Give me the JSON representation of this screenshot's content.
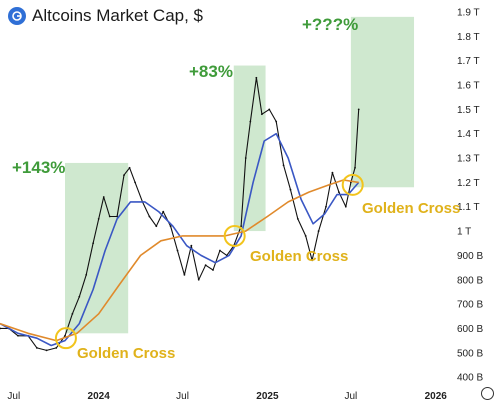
{
  "header": {
    "title": "Altcoins Market Cap, $"
  },
  "chart_data": {
    "type": "line",
    "title": "Altcoins Market Cap, $",
    "y_unit": "USD",
    "ylim": [
      0.38,
      1.9
    ],
    "y_ticks": [
      {
        "label": "1.9 T",
        "v": 1.9
      },
      {
        "label": "1.8 T",
        "v": 1.8
      },
      {
        "label": "1.7 T",
        "v": 1.7
      },
      {
        "label": "1.6 T",
        "v": 1.6
      },
      {
        "label": "1.5 T",
        "v": 1.5
      },
      {
        "label": "1.4 T",
        "v": 1.4
      },
      {
        "label": "1.3 T",
        "v": 1.3
      },
      {
        "label": "1.2 T",
        "v": 1.2
      },
      {
        "label": "1.1 T",
        "v": 1.1
      },
      {
        "label": "1 T",
        "v": 1.0
      },
      {
        "label": "900 B",
        "v": 0.9
      },
      {
        "label": "800 B",
        "v": 0.8
      },
      {
        "label": "700 B",
        "v": 0.7
      },
      {
        "label": "600 B",
        "v": 0.6
      },
      {
        "label": "500 B",
        "v": 0.5
      },
      {
        "label": "400 B",
        "v": 0.4
      }
    ],
    "xlim": [
      "2023-06-01",
      "2026-02-01"
    ],
    "x_ticks": [
      {
        "label": "Jul",
        "date": "2023-07-01",
        "bold": false
      },
      {
        "label": "2024",
        "date": "2024-01-01",
        "bold": true
      },
      {
        "label": "Jul",
        "date": "2024-07-01",
        "bold": false
      },
      {
        "label": "2025",
        "date": "2025-01-01",
        "bold": true
      },
      {
        "label": "Jul",
        "date": "2025-07-01",
        "bold": false
      },
      {
        "label": "2026",
        "date": "2026-01-01",
        "bold": true
      }
    ],
    "series": [
      {
        "key": "price",
        "color": "#111111",
        "points": [
          [
            "2023-06-01",
            0.6
          ],
          [
            "2023-06-20",
            0.6
          ],
          [
            "2023-07-10",
            0.57
          ],
          [
            "2023-08-01",
            0.57
          ],
          [
            "2023-08-20",
            0.52
          ],
          [
            "2023-09-10",
            0.51
          ],
          [
            "2023-10-01",
            0.52
          ],
          [
            "2023-10-20",
            0.57
          ],
          [
            "2023-11-05",
            0.66
          ],
          [
            "2023-11-20",
            0.73
          ],
          [
            "2023-12-05",
            0.82
          ],
          [
            "2023-12-20",
            0.95
          ],
          [
            "2024-01-01",
            1.05
          ],
          [
            "2024-01-12",
            1.14
          ],
          [
            "2024-01-25",
            1.06
          ],
          [
            "2024-02-10",
            1.06
          ],
          [
            "2024-02-25",
            1.23
          ],
          [
            "2024-03-08",
            1.26
          ],
          [
            "2024-03-20",
            1.2
          ],
          [
            "2024-04-05",
            1.12
          ],
          [
            "2024-04-20",
            1.06
          ],
          [
            "2024-05-05",
            1.02
          ],
          [
            "2024-05-20",
            1.08
          ],
          [
            "2024-06-05",
            1.02
          ],
          [
            "2024-06-20",
            0.92
          ],
          [
            "2024-07-05",
            0.82
          ],
          [
            "2024-07-20",
            0.94
          ],
          [
            "2024-08-05",
            0.8
          ],
          [
            "2024-08-20",
            0.86
          ],
          [
            "2024-09-05",
            0.84
          ],
          [
            "2024-09-20",
            0.92
          ],
          [
            "2024-10-05",
            0.9
          ],
          [
            "2024-10-20",
            0.94
          ],
          [
            "2024-11-05",
            1.02
          ],
          [
            "2024-11-15",
            1.3
          ],
          [
            "2024-11-25",
            1.45
          ],
          [
            "2024-12-08",
            1.63
          ],
          [
            "2024-12-20",
            1.48
          ],
          [
            "2025-01-05",
            1.5
          ],
          [
            "2025-01-20",
            1.45
          ],
          [
            "2025-02-05",
            1.27
          ],
          [
            "2025-02-20",
            1.17
          ],
          [
            "2025-03-08",
            1.05
          ],
          [
            "2025-03-25",
            0.98
          ],
          [
            "2025-04-08",
            0.88
          ],
          [
            "2025-04-22",
            1.0
          ],
          [
            "2025-05-08",
            1.1
          ],
          [
            "2025-05-22",
            1.24
          ],
          [
            "2025-06-05",
            1.16
          ],
          [
            "2025-06-20",
            1.1
          ],
          [
            "2025-07-01",
            1.2
          ],
          [
            "2025-07-10",
            1.26
          ],
          [
            "2025-07-18",
            1.5
          ]
        ]
      },
      {
        "key": "ma_short",
        "color": "#3a57c4",
        "points": [
          [
            "2023-06-01",
            0.62
          ],
          [
            "2023-07-10",
            0.58
          ],
          [
            "2023-08-20",
            0.56
          ],
          [
            "2023-09-20",
            0.53
          ],
          [
            "2023-10-20",
            0.55
          ],
          [
            "2023-11-20",
            0.62
          ],
          [
            "2023-12-20",
            0.76
          ],
          [
            "2024-01-15",
            0.92
          ],
          [
            "2024-02-10",
            1.05
          ],
          [
            "2024-03-10",
            1.12
          ],
          [
            "2024-04-10",
            1.12
          ],
          [
            "2024-05-10",
            1.08
          ],
          [
            "2024-06-10",
            1.02
          ],
          [
            "2024-07-10",
            0.94
          ],
          [
            "2024-08-10",
            0.9
          ],
          [
            "2024-09-10",
            0.87
          ],
          [
            "2024-10-10",
            0.9
          ],
          [
            "2024-11-05",
            0.98
          ],
          [
            "2024-12-01",
            1.2
          ],
          [
            "2024-12-25",
            1.37
          ],
          [
            "2025-01-20",
            1.4
          ],
          [
            "2025-02-15",
            1.3
          ],
          [
            "2025-03-15",
            1.13
          ],
          [
            "2025-04-10",
            1.03
          ],
          [
            "2025-05-05",
            1.07
          ],
          [
            "2025-06-01",
            1.15
          ],
          [
            "2025-06-25",
            1.15
          ],
          [
            "2025-07-18",
            1.2
          ]
        ]
      },
      {
        "key": "ma_long",
        "color": "#e08a2c",
        "points": [
          [
            "2023-06-01",
            0.62
          ],
          [
            "2023-08-01",
            0.58
          ],
          [
            "2023-10-01",
            0.55
          ],
          [
            "2023-11-15",
            0.58
          ],
          [
            "2024-01-01",
            0.66
          ],
          [
            "2024-02-15",
            0.78
          ],
          [
            "2024-04-01",
            0.9
          ],
          [
            "2024-05-15",
            0.96
          ],
          [
            "2024-07-01",
            0.98
          ],
          [
            "2024-08-15",
            0.98
          ],
          [
            "2024-10-01",
            0.98
          ],
          [
            "2024-11-15",
            1.0
          ],
          [
            "2025-01-01",
            1.06
          ],
          [
            "2025-02-15",
            1.12
          ],
          [
            "2025-04-01",
            1.16
          ],
          [
            "2025-05-15",
            1.19
          ],
          [
            "2025-06-15",
            1.21
          ],
          [
            "2025-07-18",
            1.2
          ]
        ]
      }
    ],
    "highlight_zones": [
      {
        "x0": "2023-10-20",
        "x1": "2024-03-05",
        "y0": 0.58,
        "y1": 1.28
      },
      {
        "x0": "2024-10-20",
        "x1": "2024-12-28",
        "y0": 1.0,
        "y1": 1.68
      },
      {
        "x0": "2025-07-01",
        "x1": "2025-11-15",
        "y0": 1.18,
        "y1": 1.88
      }
    ],
    "golden_cross_markers": [
      {
        "date": "2023-10-22",
        "v": 0.56
      },
      {
        "date": "2024-10-22",
        "v": 0.98
      },
      {
        "date": "2025-07-05",
        "v": 1.19
      }
    ],
    "annotations": {
      "gain_1": "+143%",
      "gain_2": "+83%",
      "gain_3": "+???%",
      "cross_1": "Golden Cross",
      "cross_2": "Golden Cross",
      "cross_3": "Golden Cross"
    },
    "colors": {
      "zone": "#cfe8cf",
      "marker": "#f2c41c",
      "gain_text": "#3f9b3a",
      "cross_text": "#e0b21b"
    }
  }
}
